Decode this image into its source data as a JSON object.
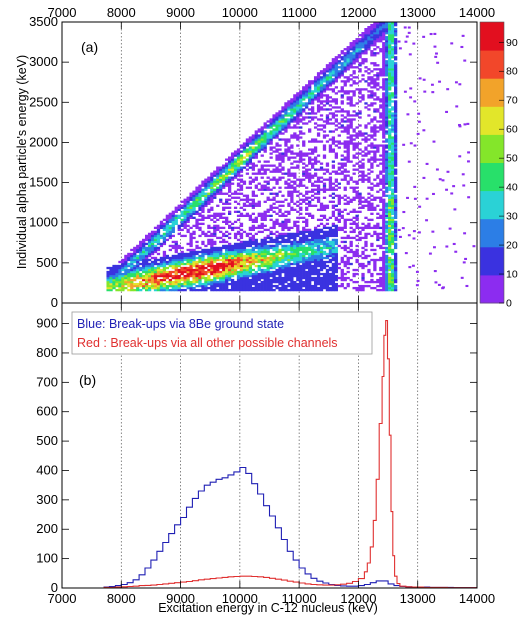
{
  "chart_data": [
    {
      "type": "heatmap",
      "panel_label": "(a)",
      "xlabel": "",
      "ylabel": "Individual alpha particle's energy (keV)",
      "xlim": [
        7000,
        14000
      ],
      "ylim": [
        0,
        3500
      ],
      "x_ticks": [
        "7000",
        "8000",
        "9000",
        "10000",
        "11000",
        "12000",
        "13000",
        "14000"
      ],
      "y_ticks": [
        "0",
        "500",
        "1000",
        "1500",
        "2000",
        "2500",
        "3000",
        "3500"
      ],
      "vertical_gridlines_at": [
        8000,
        9000,
        10000,
        11000,
        12000,
        13000
      ],
      "colorbar": {
        "range": [
          0,
          97
        ],
        "tick_labels": [
          "0",
          "10",
          "20",
          "30",
          "40",
          "50",
          "60",
          "70",
          "80",
          "90"
        ],
        "colors": [
          "#8c2cf0",
          "#3a32e0",
          "#2c7ee6",
          "#2ad2d6",
          "#28e06a",
          "#84e62a",
          "#e2e62a",
          "#f2a32a",
          "#f2472a",
          "#e20f1f"
        ]
      },
      "features": [
        {
          "name": "upper diagonal band",
          "x_range": [
            7750,
            12450
          ],
          "y_range": [
            200,
            3480
          ],
          "peak_intensity": 55
        },
        {
          "name": "lower band",
          "x_range": [
            7750,
            11600
          ],
          "y_range": [
            150,
            950
          ],
          "peak_intensity": 97
        },
        {
          "name": "vertical band",
          "x_range": [
            12350,
            12650
          ],
          "y_range": [
            150,
            3480
          ],
          "peak_intensity": 50
        }
      ]
    },
    {
      "type": "line",
      "panel_label": "(b)",
      "xlabel": "Excitation energy in C-12 nucleus (keV)",
      "ylabel": "",
      "xlim": [
        7000,
        14000
      ],
      "ylim": [
        0,
        970
      ],
      "x_ticks": [
        "7000",
        "8000",
        "9000",
        "10000",
        "11000",
        "12000",
        "13000",
        "14000"
      ],
      "y_ticks": [
        "0",
        "100",
        "200",
        "300",
        "400",
        "500",
        "600",
        "700",
        "800",
        "900"
      ],
      "vertical_gridlines_at": [
        8000,
        9000,
        10000,
        11000,
        12000,
        13000
      ],
      "legend": {
        "placement": "top-left",
        "entries": [
          {
            "text": "Blue: Break-ups via 8Be ground state",
            "color": "#1f1fb4"
          },
          {
            "text": "Red : Break-ups via all other possible channels",
            "color": "#e03030"
          }
        ]
      },
      "series": [
        {
          "color": "#1f1fb4",
          "x": [
            7700,
            7800,
            7900,
            8000,
            8100,
            8200,
            8300,
            8400,
            8500,
            8600,
            8700,
            8800,
            8900,
            9000,
            9100,
            9200,
            9300,
            9400,
            9500,
            9600,
            9700,
            9800,
            9900,
            10000,
            10100,
            10200,
            10300,
            10400,
            10500,
            10600,
            10700,
            10800,
            10900,
            11000,
            11100,
            11200,
            11300,
            11400,
            11500,
            11600,
            11700,
            11800,
            11900,
            12000,
            12100,
            12200,
            12300,
            12400,
            12500,
            12600,
            12700,
            12800,
            12900,
            13000,
            13100,
            13200,
            13300,
            13400,
            13500,
            13600,
            13700,
            13800,
            13900,
            14000
          ],
          "y": [
            3,
            5,
            8,
            12,
            18,
            28,
            45,
            68,
            95,
            125,
            155,
            185,
            215,
            240,
            275,
            305,
            330,
            350,
            360,
            370,
            375,
            385,
            395,
            410,
            390,
            355,
            320,
            280,
            245,
            205,
            165,
            125,
            95,
            68,
            48,
            33,
            23,
            17,
            12,
            9,
            7,
            6,
            6,
            8,
            12,
            18,
            24,
            24,
            14,
            8,
            5,
            4,
            3,
            3,
            3,
            2,
            2,
            2,
            2,
            1,
            1,
            1,
            1,
            1
          ]
        },
        {
          "color": "#e03030",
          "x": [
            7700,
            7800,
            7900,
            8000,
            8100,
            8200,
            8300,
            8400,
            8500,
            8600,
            8700,
            8800,
            8900,
            9000,
            9100,
            9200,
            9300,
            9400,
            9500,
            9600,
            9700,
            9800,
            9900,
            10000,
            10100,
            10200,
            10300,
            10400,
            10500,
            10600,
            10700,
            10800,
            10900,
            11000,
            11100,
            11200,
            11300,
            11400,
            11500,
            11600,
            11700,
            11800,
            11900,
            12000,
            12100,
            12150,
            12200,
            12250,
            12300,
            12350,
            12400,
            12430,
            12460,
            12490,
            12520,
            12550,
            12580,
            12610,
            12650,
            12700,
            12800,
            12900,
            13000,
            13100,
            13200,
            13300,
            13400,
            13500,
            13600,
            13700,
            13800,
            13900,
            14000
          ],
          "y": [
            2,
            2,
            3,
            4,
            5,
            6,
            8,
            9,
            10,
            12,
            14,
            16,
            18,
            20,
            22,
            25,
            28,
            30,
            32,
            34,
            36,
            38,
            39,
            40,
            40,
            39,
            38,
            36,
            33,
            30,
            27,
            23,
            20,
            17,
            14,
            12,
            11,
            10,
            10,
            11,
            13,
            16,
            22,
            32,
            55,
            85,
            140,
            230,
            370,
            560,
            720,
            860,
            910,
            780,
            520,
            260,
            110,
            40,
            15,
            6,
            4,
            3,
            3,
            2,
            2,
            2,
            2,
            1,
            1,
            1,
            1,
            1,
            1
          ]
        }
      ]
    }
  ]
}
